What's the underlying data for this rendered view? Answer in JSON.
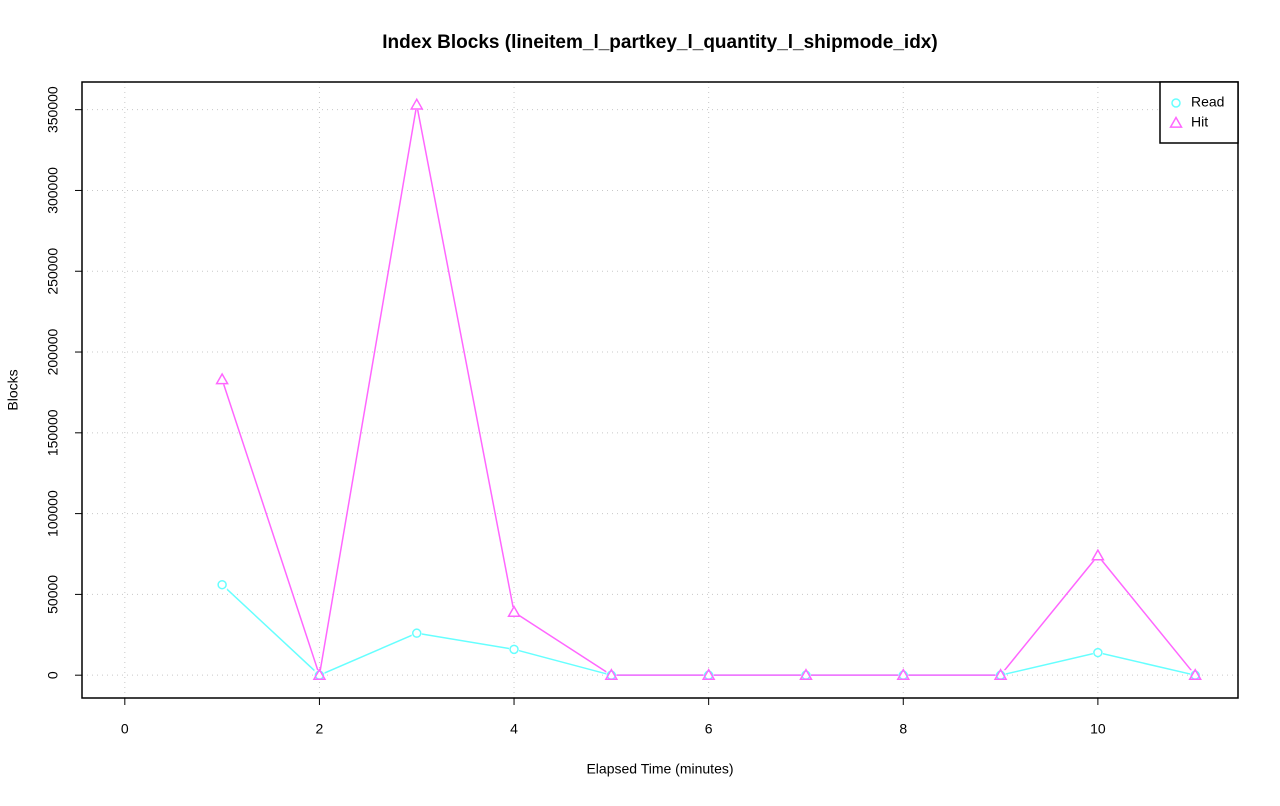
{
  "chart_data": {
    "type": "line",
    "title": "Index Blocks (lineitem_l_partkey_l_quantity_l_shipmode_idx)",
    "x_label": "Elapsed Time (minutes)",
    "y_label": "Blocks",
    "x": [
      1,
      2,
      3,
      4,
      5,
      6,
      7,
      8,
      9,
      10,
      11
    ],
    "series": [
      {
        "name": "Read",
        "color": "#66ffff",
        "marker": "circle",
        "values": [
          56000,
          0,
          26000,
          16000,
          0,
          0,
          0,
          0,
          0,
          14000,
          0
        ]
      },
      {
        "name": "Hit",
        "color": "#ff66ff",
        "marker": "triangle",
        "values": [
          183000,
          0,
          353000,
          39000,
          0,
          0,
          0,
          0,
          0,
          74000,
          0
        ]
      }
    ],
    "xlim": [
      -0.44,
      11.44
    ],
    "xticks": [
      0,
      2,
      4,
      6,
      8,
      10
    ],
    "ylim": [
      -14120,
      367120
    ],
    "yticks": [
      0,
      50000,
      100000,
      150000,
      200000,
      250000,
      300000,
      350000
    ],
    "grid": true,
    "legend": "top-right"
  }
}
